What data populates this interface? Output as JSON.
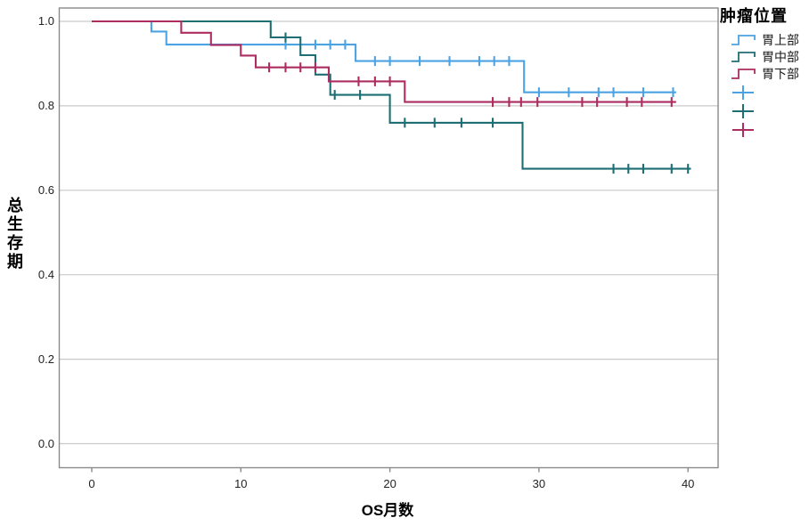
{
  "chart_data": {
    "type": "line",
    "subtype": "kaplan-meier-step-survival",
    "title": "",
    "xlabel": "OS月数",
    "ylabel": "总生存期",
    "x_ticks": [
      "0",
      "10",
      "20",
      "30",
      "40"
    ],
    "x_tick_values": [
      0,
      10,
      20,
      30,
      40
    ],
    "y_ticks": [
      "0.0",
      "0.2",
      "0.4",
      "0.6",
      "0.8",
      "1.0"
    ],
    "y_tick_values": [
      0,
      0.2,
      0.4,
      0.6,
      0.8,
      1.0
    ],
    "xlim": [
      -2.2,
      42
    ],
    "ylim": [
      -0.057,
      1.033
    ],
    "grid": true,
    "colors": {
      "grid": "#c9c9c9",
      "frame": "#8a8a8a",
      "text": "#1a1a1a",
      "background": "#ffffff"
    },
    "legend": {
      "title": "肿瘤位置",
      "position": "top-right",
      "censor_marker": "plus",
      "entries": [
        {
          "label": "胃上部",
          "color": "#4BA3E3"
        },
        {
          "label": "胃中部",
          "color": "#1E6F74"
        },
        {
          "label": "胃下部",
          "color": "#AE2D60"
        }
      ]
    },
    "series": [
      {
        "name": "胃上部",
        "color": "#4BA3E3",
        "steps": [
          [
            0,
            1.0
          ],
          [
            4,
            1.0
          ],
          [
            4,
            0.976
          ],
          [
            5,
            0.976
          ],
          [
            5,
            0.945
          ],
          [
            17.7,
            0.945
          ],
          [
            17.7,
            0.906
          ],
          [
            29,
            0.906
          ],
          [
            29,
            0.832
          ],
          [
            39.2,
            0.832
          ]
        ],
        "censors": [
          [
            13,
            0.945
          ],
          [
            15,
            0.945
          ],
          [
            16,
            0.945
          ],
          [
            17,
            0.945
          ],
          [
            19,
            0.906
          ],
          [
            20,
            0.906
          ],
          [
            22,
            0.906
          ],
          [
            24,
            0.906
          ],
          [
            26,
            0.906
          ],
          [
            27,
            0.906
          ],
          [
            28,
            0.906
          ],
          [
            30,
            0.832
          ],
          [
            32,
            0.832
          ],
          [
            34,
            0.832
          ],
          [
            35,
            0.832
          ],
          [
            37,
            0.832
          ],
          [
            39,
            0.832
          ]
        ]
      },
      {
        "name": "胃中部",
        "color": "#1E6F74",
        "steps": [
          [
            0,
            1.0
          ],
          [
            12,
            1.0
          ],
          [
            12,
            0.962
          ],
          [
            14,
            0.962
          ],
          [
            14,
            0.92
          ],
          [
            15,
            0.92
          ],
          [
            15,
            0.874
          ],
          [
            16,
            0.874
          ],
          [
            16,
            0.826
          ],
          [
            20,
            0.826
          ],
          [
            20,
            0.76
          ],
          [
            28.9,
            0.76
          ],
          [
            28.9,
            0.651
          ],
          [
            40.2,
            0.651
          ]
        ],
        "censors": [
          [
            13,
            0.962
          ],
          [
            16.3,
            0.826
          ],
          [
            18,
            0.826
          ],
          [
            21,
            0.76
          ],
          [
            23,
            0.76
          ],
          [
            24.8,
            0.76
          ],
          [
            26.9,
            0.76
          ],
          [
            35,
            0.651
          ],
          [
            36,
            0.651
          ],
          [
            37,
            0.651
          ],
          [
            38.9,
            0.651
          ],
          [
            40,
            0.651
          ]
        ]
      },
      {
        "name": "胃下部",
        "color": "#AE2D60",
        "steps": [
          [
            0,
            1.0
          ],
          [
            6,
            1.0
          ],
          [
            6,
            0.973
          ],
          [
            8,
            0.973
          ],
          [
            8,
            0.944
          ],
          [
            10,
            0.944
          ],
          [
            10,
            0.919
          ],
          [
            11,
            0.919
          ],
          [
            11,
            0.891
          ],
          [
            15.9,
            0.891
          ],
          [
            15.9,
            0.858
          ],
          [
            21,
            0.858
          ],
          [
            21,
            0.809
          ],
          [
            39.2,
            0.809
          ]
        ],
        "censors": [
          [
            11.9,
            0.891
          ],
          [
            13,
            0.891
          ],
          [
            14,
            0.891
          ],
          [
            15,
            0.891
          ],
          [
            17.9,
            0.858
          ],
          [
            19,
            0.858
          ],
          [
            20,
            0.858
          ],
          [
            26.9,
            0.809
          ],
          [
            28,
            0.809
          ],
          [
            28.8,
            0.809
          ],
          [
            29.9,
            0.809
          ],
          [
            32.9,
            0.809
          ],
          [
            33.9,
            0.809
          ],
          [
            35.9,
            0.809
          ],
          [
            36.9,
            0.809
          ],
          [
            38.9,
            0.809
          ]
        ]
      }
    ]
  }
}
